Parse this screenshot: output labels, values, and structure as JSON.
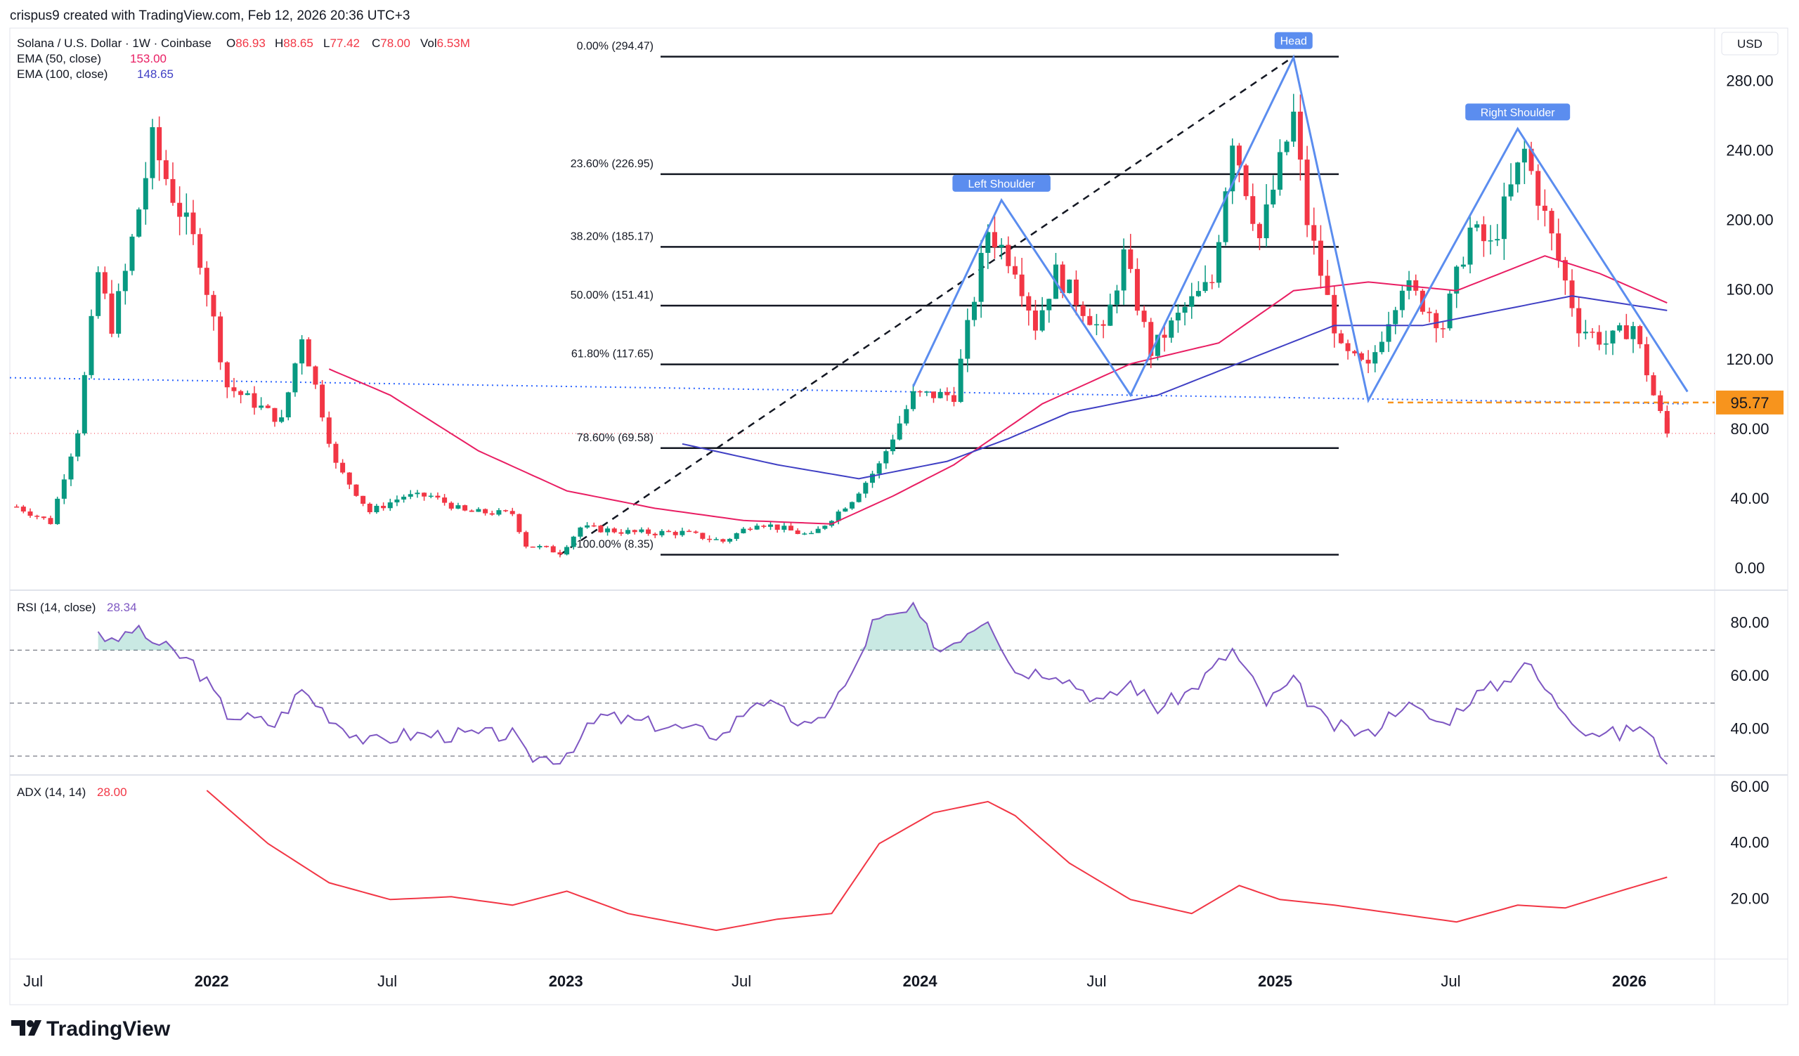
{
  "header": {
    "credit": "crispus9 created with TradingView.com, Feb 12, 2026 20:36 UTC+3",
    "symbol_line": "Solana / U.S. Dollar · 1W · Coinbase",
    "ohlc": [
      {
        "key": "O",
        "value": "86.93"
      },
      {
        "key": "H",
        "value": "88.65"
      },
      {
        "key": "L",
        "value": "77.42"
      },
      {
        "key": "C",
        "value": "78.00"
      },
      {
        "key": "Vol",
        "value": "6.53M"
      }
    ],
    "ema50_label": "EMA (50, close)",
    "ema50_value": "153.00",
    "ema100_label": "EMA (100, close)",
    "ema100_value": "148.65",
    "currency": "USD"
  },
  "rsi_pane": {
    "label": "RSI (14, close)",
    "value": "28.34"
  },
  "adx_pane": {
    "label": "ADX (14, 14)",
    "value": "28.00"
  },
  "branding": {
    "logo_text": "TradingView"
  },
  "colors": {
    "up": "#089981",
    "down": "#f23645",
    "ema50": "#e91e63",
    "ema100": "#3f3fc4",
    "pattern": "#5b8def",
    "rsi": "#7e57c2",
    "adx": "#f23645",
    "price_tag": "#f7941d"
  },
  "chart_data": [
    {
      "type": "candlestick",
      "title": "Solana / U.S. Dollar · 1W · Coinbase",
      "y_axis_ticks": [
        0,
        40,
        80,
        120,
        160,
        200,
        240,
        280
      ],
      "x_axis_ticks": [
        "Jul",
        "2022",
        "Jul",
        "2023",
        "Jul",
        "2024",
        "Jul",
        "2025",
        "Jul",
        "2026"
      ],
      "ylim": [
        -8,
        306
      ],
      "x_start": "2021-06-07",
      "x_end": "2026-03-30",
      "last_price_label": "95.77",
      "price_anchors": [
        {
          "date": "2021-06-14",
          "price": 36
        },
        {
          "date": "2021-07-19",
          "price": 27
        },
        {
          "date": "2021-08-16",
          "price": 80
        },
        {
          "date": "2021-09-06",
          "price": 170
        },
        {
          "date": "2021-09-20",
          "price": 140
        },
        {
          "date": "2021-10-04",
          "price": 170
        },
        {
          "date": "2021-11-01",
          "price": 245
        },
        {
          "date": "2021-11-22",
          "price": 215
        },
        {
          "date": "2021-12-20",
          "price": 180
        },
        {
          "date": "2022-01-17",
          "price": 105
        },
        {
          "date": "2022-02-07",
          "price": 98
        },
        {
          "date": "2022-03-14",
          "price": 85
        },
        {
          "date": "2022-04-04",
          "price": 135
        },
        {
          "date": "2022-05-09",
          "price": 60
        },
        {
          "date": "2022-06-13",
          "price": 33
        },
        {
          "date": "2022-07-18",
          "price": 42
        },
        {
          "date": "2022-08-15",
          "price": 42
        },
        {
          "date": "2022-09-19",
          "price": 33
        },
        {
          "date": "2022-11-07",
          "price": 32
        },
        {
          "date": "2022-11-21",
          "price": 14
        },
        {
          "date": "2022-12-26",
          "price": 10
        },
        {
          "date": "2023-01-16",
          "price": 24
        },
        {
          "date": "2023-03-13",
          "price": 21
        },
        {
          "date": "2023-05-01",
          "price": 21
        },
        {
          "date": "2023-06-12",
          "price": 16
        },
        {
          "date": "2023-07-17",
          "price": 27
        },
        {
          "date": "2023-09-11",
          "price": 19
        },
        {
          "date": "2023-10-23",
          "price": 40
        },
        {
          "date": "2023-11-20",
          "price": 60
        },
        {
          "date": "2023-12-25",
          "price": 100
        },
        {
          "date": "2024-02-05",
          "price": 100
        },
        {
          "date": "2024-03-11",
          "price": 195
        },
        {
          "date": "2024-04-08",
          "price": 175
        },
        {
          "date": "2024-04-29",
          "price": 140
        },
        {
          "date": "2024-05-20",
          "price": 170
        },
        {
          "date": "2024-07-08",
          "price": 135
        },
        {
          "date": "2024-07-29",
          "price": 180
        },
        {
          "date": "2024-08-26",
          "price": 125
        },
        {
          "date": "2024-09-30",
          "price": 150
        },
        {
          "date": "2024-10-28",
          "price": 165
        },
        {
          "date": "2024-11-18",
          "price": 250
        },
        {
          "date": "2024-12-16",
          "price": 190
        },
        {
          "date": "2025-01-20",
          "price": 260
        },
        {
          "date": "2025-02-03",
          "price": 200
        },
        {
          "date": "2025-03-10",
          "price": 125
        },
        {
          "date": "2025-04-07",
          "price": 115
        },
        {
          "date": "2025-05-12",
          "price": 165
        },
        {
          "date": "2025-06-23",
          "price": 140
        },
        {
          "date": "2025-07-21",
          "price": 195
        },
        {
          "date": "2025-08-11",
          "price": 185
        },
        {
          "date": "2025-09-15",
          "price": 240
        },
        {
          "date": "2025-10-13",
          "price": 190
        },
        {
          "date": "2025-11-10",
          "price": 140
        },
        {
          "date": "2025-12-08",
          "price": 130
        },
        {
          "date": "2026-01-05",
          "price": 140
        },
        {
          "date": "2026-01-26",
          "price": 100
        },
        {
          "date": "2026-02-09",
          "price": 78
        }
      ],
      "last_candle": {
        "date": "2026-02-09",
        "open": 86.93,
        "high": 88.65,
        "low": 77.42,
        "close": 78.0
      },
      "ema50": [
        {
          "date": "2022-05-02",
          "price": 115
        },
        {
          "date": "2022-07-04",
          "price": 100
        },
        {
          "date": "2022-10-03",
          "price": 68
        },
        {
          "date": "2023-01-02",
          "price": 45
        },
        {
          "date": "2023-04-03",
          "price": 35
        },
        {
          "date": "2023-07-03",
          "price": 28
        },
        {
          "date": "2023-10-02",
          "price": 26
        },
        {
          "date": "2023-12-04",
          "price": 42
        },
        {
          "date": "2024-02-05",
          "price": 60
        },
        {
          "date": "2024-05-06",
          "price": 95
        },
        {
          "date": "2024-08-05",
          "price": 118
        },
        {
          "date": "2024-11-04",
          "price": 130
        },
        {
          "date": "2025-01-20",
          "price": 160
        },
        {
          "date": "2025-04-07",
          "price": 165
        },
        {
          "date": "2025-07-07",
          "price": 160
        },
        {
          "date": "2025-10-06",
          "price": 180
        },
        {
          "date": "2025-12-01",
          "price": 170
        },
        {
          "date": "2026-02-09",
          "price": 153
        }
      ],
      "ema100": [
        {
          "date": "2023-05-01",
          "price": 72
        },
        {
          "date": "2023-08-07",
          "price": 60
        },
        {
          "date": "2023-10-30",
          "price": 52
        },
        {
          "date": "2024-01-29",
          "price": 62
        },
        {
          "date": "2024-04-01",
          "price": 75
        },
        {
          "date": "2024-06-03",
          "price": 90
        },
        {
          "date": "2024-09-02",
          "price": 100
        },
        {
          "date": "2024-12-02",
          "price": 120
        },
        {
          "date": "2025-03-03",
          "price": 140
        },
        {
          "date": "2025-06-02",
          "price": 140
        },
        {
          "date": "2025-09-01",
          "price": 150
        },
        {
          "date": "2025-11-03",
          "price": 157
        },
        {
          "date": "2026-02-09",
          "price": 148.65
        }
      ],
      "fibonacci": {
        "from": "2022-12-26",
        "to": "2025-01-20",
        "levels": [
          {
            "label": "0.00% (294.47)",
            "price": 294.47
          },
          {
            "label": "23.60% (226.95)",
            "price": 226.95
          },
          {
            "label": "38.20% (185.17)",
            "price": 185.17
          },
          {
            "label": "50.00% (151.41)",
            "price": 151.41
          },
          {
            "label": "61.80% (117.65)",
            "price": 117.65
          },
          {
            "label": "78.60% (69.58)",
            "price": 69.58
          },
          {
            "label": "100.00% (8.35)",
            "price": 8.35
          }
        ]
      },
      "fib_trend_line": [
        {
          "date": "2022-12-26",
          "price": 8.35
        },
        {
          "date": "2025-01-20",
          "price": 294.47
        }
      ],
      "head_and_shoulders": {
        "points": [
          {
            "date": "2023-12-25",
            "price": 105
          },
          {
            "date": "2024-03-25",
            "price": 212
          },
          {
            "date": "2024-08-05",
            "price": 100
          },
          {
            "date": "2025-01-20",
            "price": 294
          },
          {
            "date": "2025-04-07",
            "price": 97
          },
          {
            "date": "2025-09-08",
            "price": 253
          },
          {
            "date": "2026-03-02",
            "price": 102
          }
        ],
        "labels": [
          {
            "text": "Left Shoulder",
            "date": "2024-03-25",
            "price": 212
          },
          {
            "text": "Head",
            "date": "2025-01-20",
            "price": 294
          },
          {
            "text": "Right Shoulder",
            "date": "2025-09-08",
            "price": 253
          }
        ]
      },
      "neckline": [
        {
          "date": "2021-06-07",
          "price": 110
        },
        {
          "date": "2026-03-02",
          "price": 95
        }
      ],
      "horizontal_support": 95.77,
      "close_line": 78.0
    },
    {
      "type": "line",
      "title": "RSI (14, close)",
      "y_axis_ticks": [
        40,
        60,
        80
      ],
      "ylim": [
        25,
        90
      ],
      "bands": [
        70,
        50,
        30
      ],
      "values": [
        {
          "date": "2021-09-06",
          "v": 78
        },
        {
          "date": "2021-09-20",
          "v": 72
        },
        {
          "date": "2021-10-11",
          "v": 78
        },
        {
          "date": "2021-11-08",
          "v": 72
        },
        {
          "date": "2021-12-13",
          "v": 65
        },
        {
          "date": "2022-01-17",
          "v": 46
        },
        {
          "date": "2022-03-07",
          "v": 42
        },
        {
          "date": "2022-04-04",
          "v": 55
        },
        {
          "date": "2022-05-09",
          "v": 43
        },
        {
          "date": "2022-06-13",
          "v": 35
        },
        {
          "date": "2022-07-18",
          "v": 38
        },
        {
          "date": "2022-09-19",
          "v": 38
        },
        {
          "date": "2022-11-07",
          "v": 38
        },
        {
          "date": "2022-11-21",
          "v": 30
        },
        {
          "date": "2022-12-26",
          "v": 29
        },
        {
          "date": "2023-02-06",
          "v": 45
        },
        {
          "date": "2023-04-03",
          "v": 42
        },
        {
          "date": "2023-06-12",
          "v": 38
        },
        {
          "date": "2023-07-17",
          "v": 52
        },
        {
          "date": "2023-09-11",
          "v": 40
        },
        {
          "date": "2023-10-23",
          "v": 60
        },
        {
          "date": "2023-11-13",
          "v": 80
        },
        {
          "date": "2023-12-25",
          "v": 85
        },
        {
          "date": "2024-01-22",
          "v": 70
        },
        {
          "date": "2024-03-11",
          "v": 83
        },
        {
          "date": "2024-04-08",
          "v": 62
        },
        {
          "date": "2024-05-20",
          "v": 62
        },
        {
          "date": "2024-07-08",
          "v": 50
        },
        {
          "date": "2024-08-05",
          "v": 58
        },
        {
          "date": "2024-09-02",
          "v": 48
        },
        {
          "date": "2024-10-07",
          "v": 55
        },
        {
          "date": "2024-11-18",
          "v": 70
        },
        {
          "date": "2024-12-23",
          "v": 50
        },
        {
          "date": "2025-01-20",
          "v": 58
        },
        {
          "date": "2025-02-24",
          "v": 42
        },
        {
          "date": "2025-04-07",
          "v": 38
        },
        {
          "date": "2025-05-12",
          "v": 50
        },
        {
          "date": "2025-06-23",
          "v": 42
        },
        {
          "date": "2025-07-21",
          "v": 52
        },
        {
          "date": "2025-08-25",
          "v": 58
        },
        {
          "date": "2025-09-15",
          "v": 66
        },
        {
          "date": "2025-10-13",
          "v": 52
        },
        {
          "date": "2025-11-17",
          "v": 40
        },
        {
          "date": "2025-12-22",
          "v": 38
        },
        {
          "date": "2026-01-12",
          "v": 42
        },
        {
          "date": "2026-02-09",
          "v": 28.34
        }
      ]
    },
    {
      "type": "line",
      "title": "ADX (14, 14)",
      "y_axis_ticks": [
        20,
        40,
        60
      ],
      "ylim": [
        0,
        62
      ],
      "values": [
        {
          "date": "2021-12-27",
          "v": 59
        },
        {
          "date": "2022-02-28",
          "v": 40
        },
        {
          "date": "2022-05-02",
          "v": 26
        },
        {
          "date": "2022-07-04",
          "v": 20
        },
        {
          "date": "2022-09-05",
          "v": 21
        },
        {
          "date": "2022-11-07",
          "v": 18
        },
        {
          "date": "2023-01-02",
          "v": 23
        },
        {
          "date": "2023-03-06",
          "v": 15
        },
        {
          "date": "2023-06-05",
          "v": 9
        },
        {
          "date": "2023-08-07",
          "v": 13
        },
        {
          "date": "2023-10-02",
          "v": 15
        },
        {
          "date": "2023-11-20",
          "v": 40
        },
        {
          "date": "2024-01-15",
          "v": 51
        },
        {
          "date": "2024-03-11",
          "v": 55
        },
        {
          "date": "2024-04-08",
          "v": 50
        },
        {
          "date": "2024-06-03",
          "v": 33
        },
        {
          "date": "2024-08-05",
          "v": 20
        },
        {
          "date": "2024-10-07",
          "v": 15
        },
        {
          "date": "2024-11-25",
          "v": 25
        },
        {
          "date": "2025-01-06",
          "v": 20
        },
        {
          "date": "2025-03-03",
          "v": 18
        },
        {
          "date": "2025-05-05",
          "v": 15
        },
        {
          "date": "2025-07-07",
          "v": 12
        },
        {
          "date": "2025-09-08",
          "v": 18
        },
        {
          "date": "2025-10-27",
          "v": 17
        },
        {
          "date": "2025-12-22",
          "v": 23
        },
        {
          "date": "2026-02-09",
          "v": 28
        }
      ]
    }
  ]
}
